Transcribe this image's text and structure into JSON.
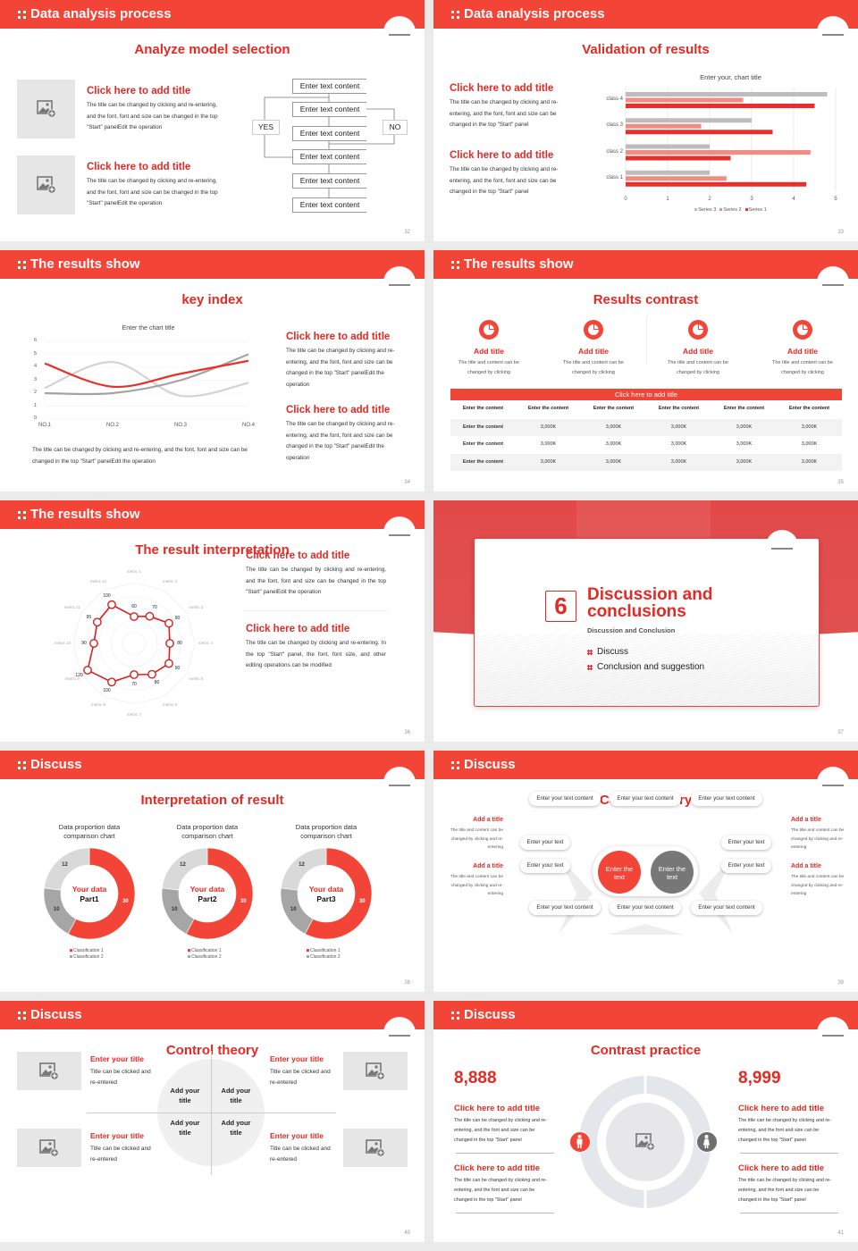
{
  "colors": {
    "brand_red": "#f24437",
    "title_red": "#e42a24",
    "series_1": "#e8302a",
    "series_2": "#f28b82",
    "series_3": "#bdbdbd",
    "dark_gray": "#808080",
    "light_gray": "#d9d9d9"
  },
  "slides": [
    {
      "header": "Data analysis process",
      "page": "32",
      "title": "Analyze model selection",
      "items": [
        {
          "title": "Click here to add title",
          "body": "The title can be changed by clicking and re-entering, and the font, font and size can be changed in the top \"Start\" panelEdit the operation",
          "icon": "image-add-icon"
        },
        {
          "title": "Click here to add title",
          "body": "The title can be changed by clicking and re-entering, and the font, font and size can be changed in the top \"Start\" panelEdit the operation",
          "icon": "image-add-icon"
        }
      ],
      "flow": {
        "boxes": [
          "Enter text content",
          "Enter text content",
          "Enter text content",
          "Enter text content",
          "Enter text content",
          "Enter text content"
        ],
        "yes": "YES",
        "no": "NO"
      }
    },
    {
      "header": "Data analysis process",
      "page": "33",
      "title": "Validation of results",
      "items": [
        {
          "title": "Click here to add title",
          "body": "The title can be changed by clicking and re-entering, and the font, font and size can be changed in the top \"Start\" panel"
        },
        {
          "title": "Click here to add title",
          "body": "The title can be changed by clicking and re-entering, and the font, font and size can be changed in the top \"Start\" panel"
        }
      ]
    },
    {
      "header": "The results show",
      "page": "34",
      "title": "key index",
      "caption": "The title can be changed by clicking and re-entering, and the font, font and size can be changed in the top \"Start\" panelEdit the operation",
      "items": [
        {
          "title": "Click here to add title",
          "body": "The title can be changed by clicking and re-entering, and the font, font and size can be changed in the top \"Start\" panelEdit the operation"
        },
        {
          "title": "Click here to add title",
          "body": "The title can be changed by clicking and re-entering, and the font, font and size can be changed in the top \"Start\" panelEdit the operation"
        }
      ]
    },
    {
      "header": "The results show",
      "page": "35",
      "title": "Results contrast",
      "cards": [
        {
          "title": "Add title",
          "body": "The title and content can be changed by clicking",
          "icon": "pie-chart-icon"
        },
        {
          "title": "Add title",
          "body": "The title and content can be changed by clicking",
          "icon": "pie-chart-icon"
        },
        {
          "title": "Add title",
          "body": "The title and content can be changed by clicking",
          "icon": "pie-chart-icon"
        },
        {
          "title": "Add title",
          "body": "The title and content can be changed by clicking",
          "icon": "pie-chart-icon"
        }
      ],
      "bar_title": "Click here to add title",
      "table": {
        "header": [
          "Enter the content",
          "Enter the content",
          "Enter the content",
          "Enter the content",
          "Enter the content",
          "Enter the content"
        ],
        "rows": [
          [
            "Enter the content",
            "3,000K",
            "3,000K",
            "3,000K",
            "3,000K",
            "3,000K"
          ],
          [
            "Enter the content",
            "3,000K",
            "3,000K",
            "3,000K",
            "3,000K",
            "3,000K"
          ],
          [
            "Enter the content",
            "3,000K",
            "3,000K",
            "3,000K",
            "3,000K",
            "3,000K"
          ]
        ]
      }
    },
    {
      "header": "The results show",
      "page": "36",
      "title": "The result interpretation",
      "items": [
        {
          "title": "Click here to add title",
          "body": "The title can be changed by clicking and re-entering, and the font, font and size can be changed in the top \"Start\" panelEdit the operation"
        },
        {
          "title": "Click here to add title",
          "body": "The title can be changed by clicking and re-entering. In the top \"Start\" panel, the font, font size, and other editing operations can be modified"
        }
      ]
    },
    {
      "page": "37",
      "number": "6",
      "title": "Discussion and conclusions",
      "subtitle": "Discussion and Conclusion",
      "bullets": [
        "Discuss",
        "Conclusion and suggestion"
      ]
    },
    {
      "header": "Discuss",
      "page": "38",
      "title": "Interpretation of result"
    },
    {
      "header": "Discuss",
      "page": "39",
      "title": "Control theory",
      "top": [
        "Enter your text content",
        "Enter your text content",
        "Enter your text content"
      ],
      "bottom": [
        "Enter your text content",
        "Enter your text content",
        "Enter your text content"
      ],
      "left": [
        "Enter your text",
        "Enter your text"
      ],
      "right": [
        "Enter your text",
        "Enter your text"
      ],
      "center": [
        "Enter the text",
        "Enter the text"
      ],
      "side_left": [
        {
          "title": "Add a title",
          "body": "The title and content can be changed by clicking and re-entering"
        },
        {
          "title": "Add a title",
          "body": "The title and content can be changed by clicking and re-entering"
        }
      ],
      "side_right": [
        {
          "title": "Add a title",
          "body": "The title and content can be changed by clicking and re-entering"
        },
        {
          "title": "Add a title",
          "body": "The title and content can be changed by clicking and re-entering"
        }
      ]
    },
    {
      "header": "Discuss",
      "page": "40",
      "title": "Control theory",
      "items": [
        {
          "title": "Enter your title",
          "body": "Title can be clicked and re-entered"
        },
        {
          "title": "Enter your title",
          "body": "Title can be clicked and re-entered"
        },
        {
          "title": "Enter your title",
          "body": "Title can be clicked and re-entered"
        },
        {
          "title": "Enter your title",
          "body": "Title can be clicked and re-entered"
        }
      ],
      "quadrants": [
        "Add your title",
        "Add your title",
        "Add your title",
        "Add your title"
      ]
    },
    {
      "header": "Discuss",
      "page": "41",
      "title": "Contrast practice",
      "numbers": [
        "8,888",
        "8,999"
      ],
      "icons": [
        "male-icon",
        "female-icon"
      ],
      "items": [
        {
          "title": "Click here to add title",
          "body": "The title can be changed by clicking and re-entering, and the font and size can be changed in the top \"Start\" panel"
        },
        {
          "title": "Click here to add title",
          "body": "The title can be changed by clicking and re-entering, and the font and size can be changed in the top \"Start\" panel"
        },
        {
          "title": "Click here to add title",
          "body": "The title can be changed by clicking and re-entering, and the font and size can be changed in the top \"Start\" panel"
        },
        {
          "title": "Click here to add title",
          "body": "The title can be changed by clicking and re-entering, and the font and size can be changed in the top \"Start\" panel"
        }
      ]
    }
  ],
  "chart_data": [
    {
      "type": "bar",
      "orientation": "horizontal",
      "title": "Enter your, chart title",
      "categories": [
        "class 1",
        "class 2",
        "class 3",
        "class 4"
      ],
      "series": [
        {
          "name": "Series 1",
          "values": [
            4.3,
            2.5,
            3.5,
            4.5
          ]
        },
        {
          "name": "Series 2",
          "values": [
            2.4,
            4.4,
            1.8,
            2.8
          ]
        },
        {
          "name": "Series 3",
          "values": [
            2.0,
            2.0,
            3.0,
            4.8
          ]
        }
      ],
      "xlim": [
        0,
        5
      ],
      "ticks": [
        "0",
        "1",
        "2",
        "3",
        "4",
        "5"
      ],
      "grid": true,
      "legend": "bottom"
    },
    {
      "type": "line",
      "smooth": true,
      "title": "Enter the chart title",
      "categories": [
        "NO.1",
        "NO.2",
        "NO.3",
        "NO.4"
      ],
      "series": [
        {
          "values": [
            4.3,
            2.5,
            3.5,
            4.5
          ]
        },
        {
          "values": [
            2.4,
            4.4,
            1.8,
            2.8
          ]
        },
        {
          "values": [
            2.0,
            2.0,
            3.0,
            5.0
          ]
        }
      ],
      "ylim": [
        0,
        6
      ],
      "ticks": [
        "0",
        "1",
        "2",
        "3",
        "4",
        "5",
        "6"
      ],
      "grid": true
    },
    {
      "type": "radar",
      "axes": [
        "metric 1",
        "metric 2",
        "metric 3",
        "metric 4",
        "metric 5",
        "metric 6",
        "metric 7",
        "metric 8",
        "metric 9",
        "metric 10",
        "metric 11",
        "metric 12"
      ],
      "values": [
        60,
        70,
        90,
        80,
        90,
        80,
        70,
        100,
        120,
        90,
        95,
        100
      ],
      "labels": [
        "60",
        "70",
        "90",
        "80",
        "90",
        "80",
        "70",
        "100",
        "120",
        "90",
        "95",
        "100"
      ],
      "rmax": 130
    },
    {
      "type": "pie",
      "donut": true,
      "charts": [
        {
          "title": "Data proportion data comparison chart",
          "center": [
            "Your data",
            "Part1"
          ],
          "values": [
            30,
            10,
            12
          ],
          "labels": [
            "30",
            "10",
            "12"
          ]
        },
        {
          "title": "Data proportion data comparison chart",
          "center": [
            "Your data",
            "Part2"
          ],
          "values": [
            30,
            10,
            12
          ],
          "labels": [
            "30",
            "10",
            "12"
          ]
        },
        {
          "title": "Data proportion data comparison chart",
          "center": [
            "Your data",
            "Part3"
          ],
          "values": [
            30,
            10,
            12
          ],
          "labels": [
            "30",
            "10",
            "12"
          ]
        }
      ],
      "legend_entries": [
        "Classification 1",
        "Classification 2"
      ],
      "colors": [
        "#f24437",
        "#a6a6a6",
        "#d9d9d9"
      ],
      "legend": "bottom"
    }
  ]
}
